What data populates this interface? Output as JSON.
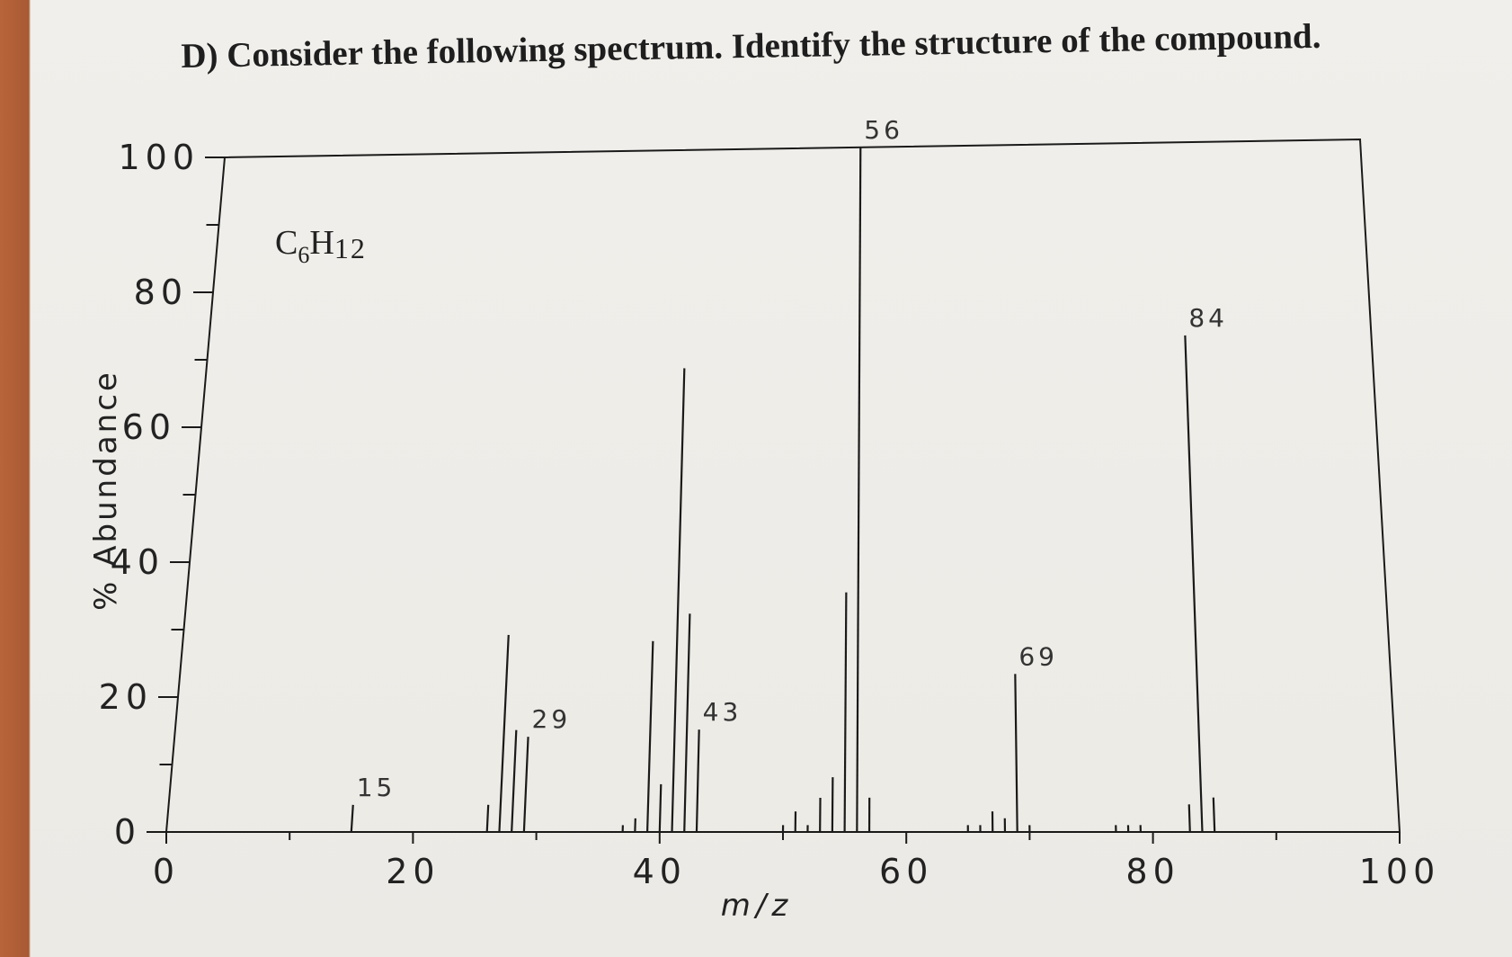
{
  "question": "D) Consider the following spectrum.  Identify the structure of the compound.",
  "chart_data": {
    "type": "bar",
    "title": "",
    "formula": {
      "main": "C",
      "sub1": "6",
      "mid": "H",
      "sub2": "12"
    },
    "xlabel": "m/z",
    "ylabel": "% Abundance",
    "xlim": [
      0,
      100
    ],
    "ylim": [
      0,
      100
    ],
    "x_ticks": [
      "0",
      "20",
      "40",
      "60",
      "80",
      "100"
    ],
    "x_tick_values": [
      0,
      20,
      40,
      60,
      80,
      100
    ],
    "y_ticks": [
      "0",
      "20",
      "40",
      "60",
      "80",
      "100"
    ],
    "y_tick_values": [
      0,
      20,
      40,
      60,
      80,
      100
    ],
    "grid": false,
    "peaks": [
      {
        "x": 15,
        "y": 4,
        "label": "15"
      },
      {
        "x": 26,
        "y": 4
      },
      {
        "x": 27,
        "y": 29
      },
      {
        "x": 28,
        "y": 15
      },
      {
        "x": 29,
        "y": 14,
        "label": "29"
      },
      {
        "x": 37,
        "y": 1
      },
      {
        "x": 38,
        "y": 2
      },
      {
        "x": 39,
        "y": 28
      },
      {
        "x": 40,
        "y": 7
      },
      {
        "x": 41,
        "y": 68
      },
      {
        "x": 42,
        "y": 32
      },
      {
        "x": 43,
        "y": 15,
        "label": "43"
      },
      {
        "x": 50,
        "y": 1
      },
      {
        "x": 51,
        "y": 3
      },
      {
        "x": 52,
        "y": 1
      },
      {
        "x": 53,
        "y": 5
      },
      {
        "x": 54,
        "y": 8
      },
      {
        "x": 55,
        "y": 35
      },
      {
        "x": 56,
        "y": 100,
        "label": "56"
      },
      {
        "x": 57,
        "y": 5
      },
      {
        "x": 65,
        "y": 1
      },
      {
        "x": 66,
        "y": 1
      },
      {
        "x": 67,
        "y": 3
      },
      {
        "x": 68,
        "y": 2
      },
      {
        "x": 69,
        "y": 23,
        "label": "69"
      },
      {
        "x": 70,
        "y": 1
      },
      {
        "x": 77,
        "y": 1
      },
      {
        "x": 78,
        "y": 1
      },
      {
        "x": 79,
        "y": 1
      },
      {
        "x": 83,
        "y": 4
      },
      {
        "x": 84,
        "y": 72,
        "label": "84"
      },
      {
        "x": 85,
        "y": 5
      }
    ]
  }
}
